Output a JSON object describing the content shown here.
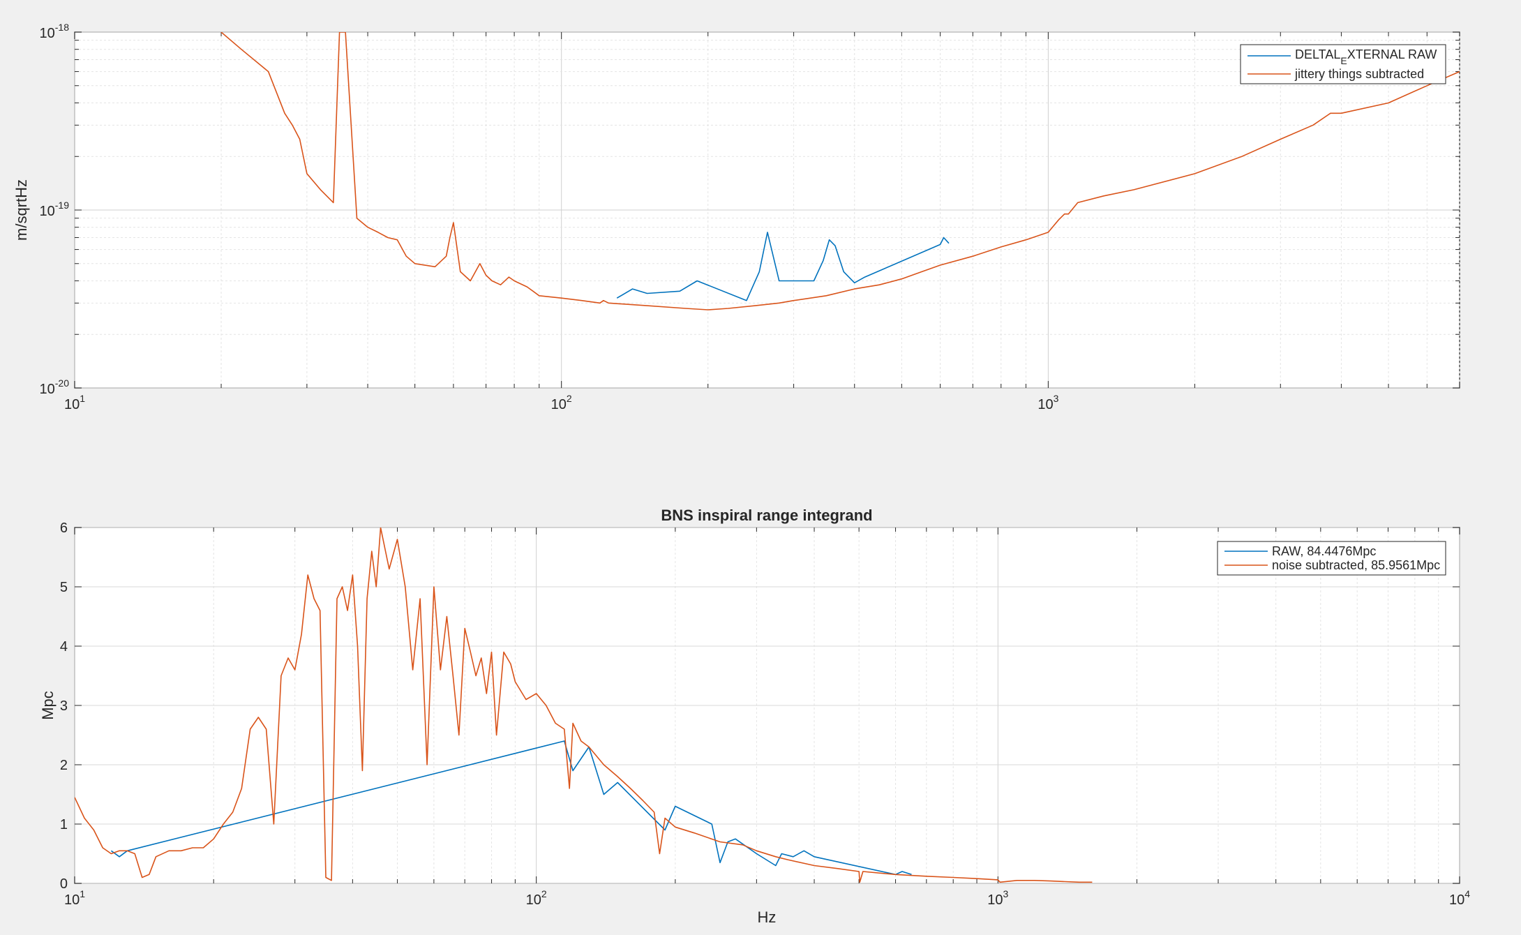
{
  "colors": {
    "raw": "#0072BD",
    "subtracted": "#D95319",
    "grid": "#d9d9d9",
    "background": "#f0f0f0"
  },
  "chart_data": [
    {
      "type": "line",
      "title": "",
      "xlabel": "",
      "ylabel": "m/sqrtHz",
      "xscale": "log",
      "yscale": "log",
      "xlim": [
        10,
        7000
      ],
      "ylim": [
        1e-20,
        1e-18
      ],
      "x_ticks": [
        {
          "base": "10",
          "exp": "1",
          "value": 10
        },
        {
          "base": "10",
          "exp": "2",
          "value": 100
        },
        {
          "base": "10",
          "exp": "3",
          "value": 1000
        }
      ],
      "y_ticks": [
        {
          "base": "10",
          "exp": "-20",
          "value": 1e-20
        },
        {
          "base": "10",
          "exp": "-19",
          "value": 1e-19
        },
        {
          "base": "10",
          "exp": "-18",
          "value": 1e-18
        }
      ],
      "grid": true,
      "legend_position": "top-right",
      "legend": {
        "raw": {
          "main": "DELTAL",
          "sub": "E",
          "rest": "XTERNAL RAW"
        },
        "subtracted": "jittery things subtracted"
      },
      "series": [
        {
          "key": "raw",
          "x": [
            130,
            140,
            150,
            175,
            190,
            240,
            255,
            265,
            280,
            330,
            345,
            355,
            365,
            380,
            400,
            420,
            600,
            610,
            625
          ],
          "y": [
            3.2e-20,
            3.6e-20,
            3.4e-20,
            3.5e-20,
            4e-20,
            3.1e-20,
            4.5e-20,
            7.5e-20,
            4e-20,
            4e-20,
            5.2e-20,
            6.8e-20,
            6.3e-20,
            4.5e-20,
            3.9e-20,
            4.2e-20,
            6.4e-20,
            7e-20,
            6.5e-20
          ]
        },
        {
          "key": "subtracted",
          "x": [
            20,
            22,
            25,
            27,
            28,
            29,
            30,
            32,
            34,
            35,
            36,
            38,
            40,
            42,
            44,
            46,
            48,
            50,
            55,
            58,
            59,
            60,
            62,
            65,
            68,
            70,
            72,
            75,
            78,
            80,
            85,
            90,
            100,
            110,
            120,
            122,
            125,
            150,
            180,
            200,
            220,
            250,
            280,
            300,
            350,
            400,
            450,
            500,
            550,
            600,
            700,
            800,
            900,
            1000,
            1050,
            1080,
            1100,
            1150,
            1300,
            1500,
            2000,
            2500,
            3000,
            3500,
            3800,
            4000,
            5000,
            6000,
            7000
          ],
          "y": [
            1e-18,
            8e-19,
            6e-19,
            3.5e-19,
            3e-19,
            2.5e-19,
            1.6e-19,
            1.3e-19,
            1.1e-19,
            1e-18,
            1e-18,
            9e-20,
            8e-20,
            7.5e-20,
            7e-20,
            6.8e-20,
            5.5e-20,
            5e-20,
            4.8e-20,
            5.5e-20,
            7e-20,
            8.5e-20,
            4.5e-20,
            4e-20,
            5e-20,
            4.3e-20,
            4e-20,
            3.8e-20,
            4.2e-20,
            4e-20,
            3.7e-20,
            3.3e-20,
            3.2e-20,
            3.1e-20,
            3e-20,
            3.1e-20,
            3e-20,
            2.9e-20,
            2.8e-20,
            2.75e-20,
            2.8e-20,
            2.9e-20,
            3e-20,
            3.1e-20,
            3.3e-20,
            3.6e-20,
            3.8e-20,
            4.1e-20,
            4.5e-20,
            4.9e-20,
            5.5e-20,
            6.2e-20,
            6.8e-20,
            7.5e-20,
            8.8e-20,
            9.5e-20,
            9.5e-20,
            1.1e-19,
            1.2e-19,
            1.3e-19,
            1.6e-19,
            2e-19,
            2.5e-19,
            3e-19,
            3.5e-19,
            3.5e-19,
            4e-19,
            5e-19,
            6e-19
          ]
        }
      ]
    },
    {
      "type": "line",
      "title": "BNS inspiral range integrand",
      "xlabel": "Hz",
      "ylabel": "Mpc",
      "xscale": "log",
      "yscale": "linear",
      "xlim": [
        10,
        10000
      ],
      "ylim": [
        0,
        6
      ],
      "x_ticks": [
        {
          "base": "10",
          "exp": "1",
          "value": 10
        },
        {
          "base": "10",
          "exp": "2",
          "value": 100
        },
        {
          "base": "10",
          "exp": "3",
          "value": 1000
        },
        {
          "base": "10",
          "exp": "4",
          "value": 10000
        }
      ],
      "y_ticks": [
        "0",
        "1",
        "2",
        "3",
        "4",
        "5",
        "6"
      ],
      "grid": true,
      "legend_position": "top-right",
      "legend": {
        "raw": "RAW, 84.4476Mpc",
        "subtracted": "noise subtracted, 85.9561Mpc"
      },
      "series": [
        {
          "key": "raw",
          "x": [
            12,
            12.5,
            13,
            115,
            120,
            130,
            140,
            150,
            190,
            200,
            240,
            250,
            260,
            270,
            300,
            330,
            340,
            360,
            380,
            400,
            600,
            620,
            650
          ],
          "y": [
            0.55,
            0.45,
            0.55,
            2.4,
            1.9,
            2.3,
            1.5,
            1.7,
            0.9,
            1.3,
            1.0,
            0.35,
            0.7,
            0.75,
            0.5,
            0.3,
            0.5,
            0.45,
            0.55,
            0.45,
            0.15,
            0.2,
            0.15
          ]
        },
        {
          "key": "subtracted",
          "x": [
            10,
            10.5,
            11,
            11.5,
            12,
            12.5,
            13,
            13.5,
            14,
            14.5,
            15,
            16,
            17,
            18,
            19,
            20,
            21,
            22,
            23,
            24,
            25,
            26,
            27,
            28,
            29,
            30,
            31,
            32,
            33,
            34,
            35,
            36,
            37,
            38,
            39,
            40,
            41,
            42,
            43,
            44,
            45,
            46,
            48,
            50,
            52,
            54,
            56,
            58,
            60,
            62,
            64,
            66,
            68,
            70,
            72,
            74,
            76,
            78,
            80,
            82,
            85,
            88,
            90,
            95,
            100,
            105,
            110,
            115,
            118,
            120,
            125,
            130,
            140,
            150,
            160,
            170,
            180,
            185,
            190,
            200,
            220,
            250,
            280,
            300,
            330,
            350,
            400,
            450,
            500,
            502,
            510,
            600,
            700,
            800,
            900,
            1000,
            1010,
            1100,
            1200,
            1300,
            1400,
            1500,
            1600
          ],
          "y": [
            1.45,
            1.1,
            0.9,
            0.6,
            0.5,
            0.55,
            0.55,
            0.5,
            0.1,
            0.15,
            0.45,
            0.55,
            0.55,
            0.6,
            0.6,
            0.75,
            1.0,
            1.2,
            1.6,
            2.6,
            2.8,
            2.6,
            1.0,
            3.5,
            3.8,
            3.6,
            4.2,
            5.2,
            4.8,
            4.6,
            0.1,
            0.05,
            4.8,
            5.0,
            4.6,
            5.2,
            4.0,
            1.9,
            4.8,
            5.6,
            5.0,
            6.0,
            5.3,
            5.8,
            5.0,
            3.6,
            4.8,
            2.0,
            5.0,
            3.6,
            4.5,
            3.5,
            2.5,
            4.3,
            3.9,
            3.5,
            3.8,
            3.2,
            3.9,
            2.5,
            3.9,
            3.7,
            3.4,
            3.1,
            3.2,
            3.0,
            2.7,
            2.6,
            1.6,
            2.7,
            2.4,
            2.3,
            2.0,
            1.8,
            1.6,
            1.4,
            1.2,
            0.5,
            1.1,
            0.95,
            0.85,
            0.7,
            0.65,
            0.55,
            0.45,
            0.4,
            0.3,
            0.25,
            0.2,
            0.02,
            0.2,
            0.15,
            0.12,
            0.1,
            0.08,
            0.06,
            0.02,
            0.05,
            0.05,
            0.04,
            0.03,
            0.02,
            0.02
          ]
        }
      ]
    }
  ]
}
